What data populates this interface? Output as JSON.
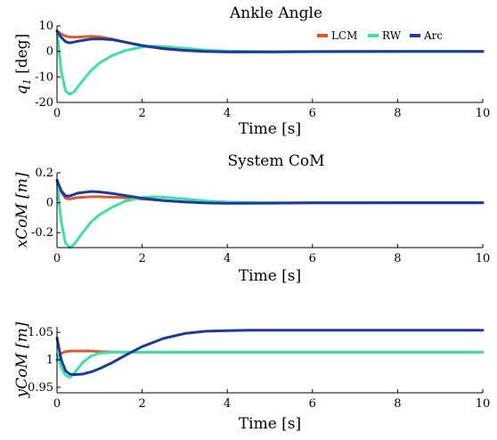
{
  "chart_data": [
    {
      "type": "line",
      "title": "Ankle Angle",
      "xlabel": "Time [s]",
      "ylabel": "q1 [deg]",
      "xlim": [
        0,
        10
      ],
      "ylim": [
        -20,
        10
      ],
      "xticks": [
        "0",
        "2",
        "4",
        "6",
        "8",
        "10"
      ],
      "yticks": [
        "10",
        "0",
        "-10",
        "-20"
      ],
      "legend": {
        "placement": "top-right",
        "entries": [
          "LCM",
          "RW",
          "Arc"
        ]
      },
      "series": [
        {
          "name": "LCM",
          "color": "#e05a2b",
          "x": [
            0,
            0.1,
            0.2,
            0.3,
            0.5,
            0.8,
            1.0,
            1.3,
            1.6,
            2.0,
            2.5,
            3.0,
            3.5,
            4.0,
            5.0,
            6.0,
            8.0,
            10.0
          ],
          "y": [
            8,
            6.8,
            6.0,
            5.6,
            5.6,
            5.9,
            5.7,
            4.8,
            3.6,
            2.2,
            1.0,
            0.3,
            0.0,
            -0.2,
            -0.2,
            -0.1,
            0,
            0
          ]
        },
        {
          "name": "RW",
          "color": "#3ee0a8",
          "x": [
            0,
            0.05,
            0.1,
            0.2,
            0.3,
            0.4,
            0.6,
            0.8,
            1.0,
            1.3,
            1.6,
            2.0,
            2.3,
            2.6,
            3.0,
            3.5,
            4.0,
            5.0,
            6.0,
            8.0,
            10.0
          ],
          "y": [
            8,
            0,
            -8,
            -15.5,
            -16.8,
            -15.8,
            -11.5,
            -7.5,
            -4.5,
            -1.6,
            0.3,
            1.7,
            2.0,
            1.8,
            1.2,
            0.5,
            0.1,
            -0.1,
            0,
            0,
            0
          ]
        },
        {
          "name": "Arc",
          "color": "#1a3a9c",
          "x": [
            0,
            0.1,
            0.2,
            0.3,
            0.5,
            0.8,
            1.0,
            1.3,
            1.6,
            2.0,
            2.5,
            3.0,
            3.5,
            4.0,
            5.0,
            6.0,
            8.0,
            10.0
          ],
          "y": [
            8,
            5.5,
            3.8,
            3.3,
            4.0,
            4.8,
            4.9,
            4.6,
            3.6,
            2.3,
            1.1,
            0.4,
            0.0,
            -0.2,
            -0.2,
            -0.1,
            0,
            0
          ]
        }
      ]
    },
    {
      "type": "line",
      "title": "System CoM",
      "xlabel": "Time [s]",
      "ylabel": "xCoM [m]",
      "xlim": [
        0,
        10
      ],
      "ylim": [
        -0.3,
        0.2
      ],
      "xticks": [
        "0",
        "2",
        "4",
        "6",
        "8",
        "10"
      ],
      "yticks": [
        "0.2",
        "0",
        "-0.2"
      ],
      "series": [
        {
          "name": "LCM",
          "color": "#e05a2b",
          "x": [
            0,
            0.1,
            0.2,
            0.3,
            0.5,
            0.8,
            1.0,
            1.5,
            2.0,
            2.5,
            3.0,
            4.0,
            5.0,
            6.0,
            8.0,
            10.0
          ],
          "y": [
            0.15,
            0.07,
            0.03,
            0.025,
            0.035,
            0.04,
            0.04,
            0.035,
            0.025,
            0.015,
            0.005,
            -0.002,
            -0.002,
            0,
            0,
            0
          ]
        },
        {
          "name": "RW",
          "color": "#3ee0a8",
          "x": [
            0,
            0.05,
            0.1,
            0.2,
            0.3,
            0.4,
            0.6,
            0.8,
            1.0,
            1.3,
            1.6,
            2.0,
            2.3,
            2.6,
            3.0,
            3.5,
            4.0,
            5.0,
            6.0,
            8.0,
            10.0
          ],
          "y": [
            0.15,
            0.0,
            -0.13,
            -0.27,
            -0.3,
            -0.28,
            -0.2,
            -0.13,
            -0.08,
            -0.03,
            0.01,
            0.035,
            0.04,
            0.035,
            0.025,
            0.012,
            0.004,
            0,
            0,
            0,
            0
          ]
        },
        {
          "name": "Arc",
          "color": "#1a3a9c",
          "x": [
            0,
            0.1,
            0.2,
            0.3,
            0.5,
            0.8,
            1.0,
            1.3,
            1.6,
            2.0,
            2.5,
            3.0,
            3.5,
            4.0,
            5.0,
            6.0,
            8.0,
            10.0
          ],
          "y": [
            0.15,
            0.08,
            0.045,
            0.045,
            0.065,
            0.075,
            0.072,
            0.062,
            0.048,
            0.03,
            0.015,
            0.005,
            -0.002,
            -0.004,
            -0.003,
            -0.001,
            0,
            0
          ]
        }
      ]
    },
    {
      "type": "line",
      "title": "",
      "xlabel": "Time [s]",
      "ylabel": "yCoM [m]",
      "xlim": [
        0,
        10
      ],
      "ylim": [
        0.94,
        1.06
      ],
      "xticks": [
        "0",
        "2",
        "4",
        "6",
        "8",
        "10"
      ],
      "yticks": [
        "1.05",
        "1",
        "0.95"
      ],
      "series": [
        {
          "name": "LCM",
          "color": "#e05a2b",
          "x": [
            0,
            0.1,
            0.2,
            0.3,
            0.5,
            0.8,
            1.0,
            1.5,
            2.0,
            3.0,
            4.0,
            6.0,
            8.0,
            10.0
          ],
          "y": [
            1.0,
            1.012,
            1.015,
            1.016,
            1.016,
            1.016,
            1.015,
            1.014,
            1.014,
            1.014,
            1.014,
            1.014,
            1.014,
            1.014
          ]
        },
        {
          "name": "RW",
          "color": "#3ee0a8",
          "x": [
            0,
            0.05,
            0.1,
            0.2,
            0.3,
            0.4,
            0.6,
            0.8,
            1.0,
            1.3,
            1.6,
            2.0,
            3.0,
            4.0,
            6.0,
            8.0,
            10.0
          ],
          "y": [
            1.01,
            1.0,
            0.985,
            0.972,
            0.968,
            0.975,
            0.995,
            1.007,
            1.012,
            1.014,
            1.014,
            1.014,
            1.014,
            1.014,
            1.014,
            1.014,
            1.014
          ]
        },
        {
          "name": "Arc",
          "color": "#1a3a9c",
          "x": [
            0,
            0.05,
            0.1,
            0.2,
            0.3,
            0.4,
            0.6,
            0.8,
            1.0,
            1.3,
            1.6,
            2.0,
            2.5,
            3.0,
            3.5,
            4.0,
            4.5,
            5.0,
            6.0,
            8.0,
            10.0
          ],
          "y": [
            1.04,
            1.02,
            1.0,
            0.98,
            0.974,
            0.973,
            0.974,
            0.978,
            0.984,
            0.995,
            1.008,
            1.024,
            1.039,
            1.048,
            1.052,
            1.053,
            1.054,
            1.054,
            1.054,
            1.054,
            1.054
          ]
        }
      ]
    }
  ]
}
